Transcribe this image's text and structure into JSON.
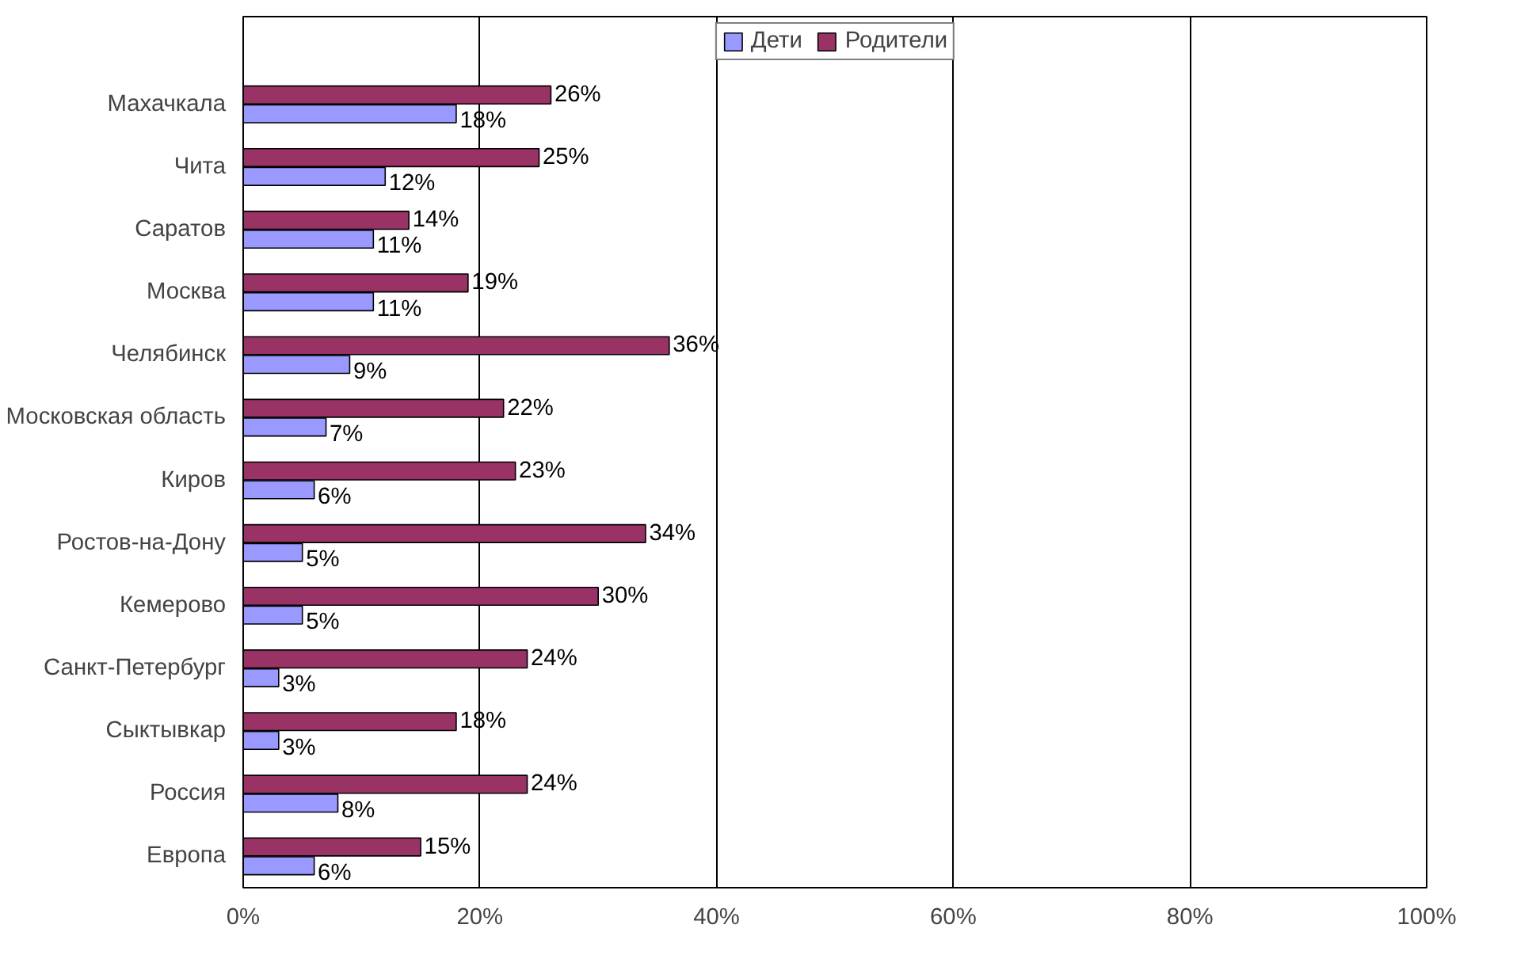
{
  "chart_data": {
    "type": "bar",
    "orientation": "horizontal",
    "categories": [
      "Махачкала",
      "Чита",
      "Саратов",
      "Москва",
      "Челябинск",
      "Московская область",
      "Киров",
      "Ростов-на-Дону",
      "Кемерово",
      "Санкт-Петербург",
      "Сыктывкар",
      "Россия",
      "Европа"
    ],
    "series": [
      {
        "name": "Дети",
        "color": "#9999ff",
        "values": [
          18,
          12,
          11,
          11,
          9,
          7,
          6,
          5,
          5,
          3,
          3,
          8,
          6
        ],
        "value_labels": [
          "18%",
          "12%",
          "11%",
          "11%",
          "9%",
          "7%",
          "6%",
          "5%",
          "5%",
          "3%",
          "3%",
          "8%",
          "6%"
        ]
      },
      {
        "name": "Родители",
        "color": "#993366",
        "values": [
          26,
          25,
          14,
          19,
          36,
          22,
          23,
          34,
          30,
          24,
          18,
          24,
          15
        ],
        "value_labels": [
          "26%",
          "25%",
          "14%",
          "19%",
          "36%",
          "22%",
          "23%",
          "34%",
          "30%",
          "24%",
          "18%",
          "24%",
          "15%"
        ]
      }
    ],
    "xlim": [
      0,
      100
    ],
    "xticks": [
      {
        "value": 0,
        "label": "0%"
      },
      {
        "value": 20,
        "label": "20%"
      },
      {
        "value": 40,
        "label": "40%"
      },
      {
        "value": 60,
        "label": "60%"
      },
      {
        "value": 80,
        "label": "80%"
      },
      {
        "value": 100,
        "label": "100%"
      }
    ],
    "grid": "x",
    "legend": "top"
  }
}
